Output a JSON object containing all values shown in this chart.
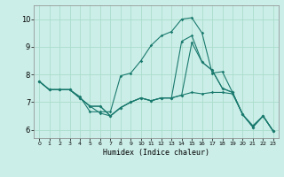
{
  "background_color": "#cceee8",
  "grid_color": "#aaddcc",
  "line_color": "#1a7a6e",
  "xlabel": "Humidex (Indice chaleur)",
  "ylim": [
    5.7,
    10.5
  ],
  "xlim": [
    -0.5,
    23.5
  ],
  "yticks": [
    6,
    7,
    8,
    9,
    10
  ],
  "xticks": [
    0,
    1,
    2,
    3,
    4,
    5,
    6,
    7,
    8,
    9,
    10,
    11,
    12,
    13,
    14,
    15,
    16,
    17,
    18,
    19,
    20,
    21,
    22,
    23
  ],
  "series": [
    [
      7.75,
      7.45,
      7.45,
      7.45,
      7.2,
      6.65,
      6.65,
      6.65,
      7.95,
      8.05,
      8.5,
      9.05,
      9.4,
      9.55,
      10.0,
      10.05,
      9.5,
      8.05,
      8.1,
      7.35,
      6.55,
      6.1,
      6.5,
      5.95
    ],
    [
      7.75,
      7.45,
      7.45,
      7.45,
      7.15,
      6.85,
      6.85,
      6.5,
      6.8,
      7.0,
      7.15,
      7.05,
      7.15,
      7.15,
      7.25,
      9.15,
      8.45,
      8.15,
      7.5,
      7.35,
      6.55,
      6.1,
      6.5,
      5.95
    ],
    [
      7.75,
      7.45,
      7.45,
      7.45,
      7.15,
      6.85,
      6.85,
      6.5,
      6.8,
      7.0,
      7.15,
      7.05,
      7.15,
      7.15,
      9.2,
      9.4,
      8.45,
      8.15,
      7.5,
      7.35,
      6.55,
      6.1,
      6.5,
      5.95
    ],
    [
      7.75,
      7.45,
      7.45,
      7.45,
      7.15,
      6.85,
      6.6,
      6.5,
      6.8,
      7.0,
      7.15,
      7.05,
      7.15,
      7.15,
      7.25,
      7.35,
      7.3,
      7.35,
      7.35,
      7.3,
      6.55,
      6.15,
      6.5,
      5.95
    ]
  ],
  "figsize": [
    3.2,
    2.0
  ],
  "dpi": 100
}
